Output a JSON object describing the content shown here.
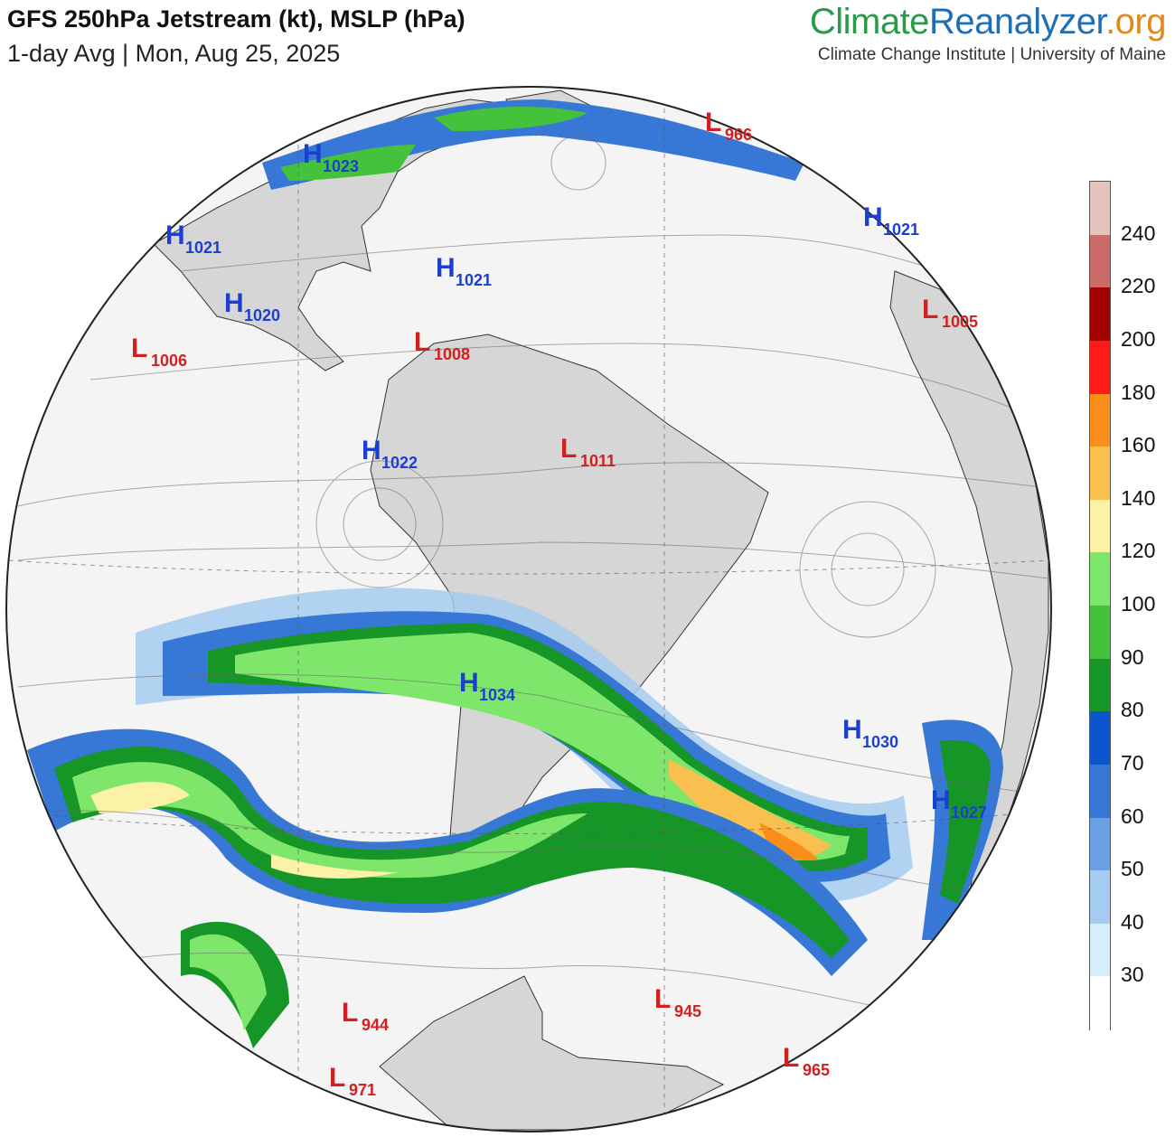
{
  "header": {
    "title": "GFS 250hPa Jetstream (kt), MSLP (hPa)",
    "subtitle": "1-day Avg | Mon, Aug 25, 2025",
    "brand_part1": "Climate",
    "brand_part2": "Reanalyzer",
    "brand_part3": ".org",
    "brand_sub": "Climate Change Institute | University of Maine"
  },
  "colors": {
    "high": "#1a3fd1",
    "low": "#d21f1f",
    "land": "#d6d6d6",
    "ocean": "#f4f4f4"
  },
  "colorbar": {
    "labels": [
      "240",
      "220",
      "200",
      "180",
      "160",
      "140",
      "120",
      "100",
      "90",
      "80",
      "70",
      "60",
      "50",
      "40",
      "30"
    ],
    "colors": [
      "#e2c4bc",
      "#cc6a6a",
      "#a30000",
      "#ff1a1a",
      "#f98e1a",
      "#f9bf4f",
      "#fbf2a8",
      "#7ee66a",
      "#45c23c",
      "#179628",
      "#0d55cc",
      "#3778d6",
      "#6aa1e3",
      "#a6cbf0",
      "#d6edfa",
      "#ffffff"
    ]
  },
  "pressure_centers": [
    {
      "type": "H",
      "value": "1023"
    },
    {
      "type": "H",
      "value": "1021"
    },
    {
      "type": "H",
      "value": "1020"
    },
    {
      "type": "H",
      "value": "1021"
    },
    {
      "type": "L",
      "value": "1006"
    },
    {
      "type": "L",
      "value": "1008"
    },
    {
      "type": "H",
      "value": "1022"
    },
    {
      "type": "L",
      "value": "1011"
    },
    {
      "type": "L",
      "value": "966"
    },
    {
      "type": "H",
      "value": "1021"
    },
    {
      "type": "L",
      "value": "1005"
    },
    {
      "type": "H",
      "value": "1034"
    },
    {
      "type": "H",
      "value": "1030"
    },
    {
      "type": "H",
      "value": "1027"
    },
    {
      "type": "L",
      "value": "944"
    },
    {
      "type": "L",
      "value": "945"
    },
    {
      "type": "L",
      "value": "965"
    },
    {
      "type": "L",
      "value": "971"
    }
  ]
}
